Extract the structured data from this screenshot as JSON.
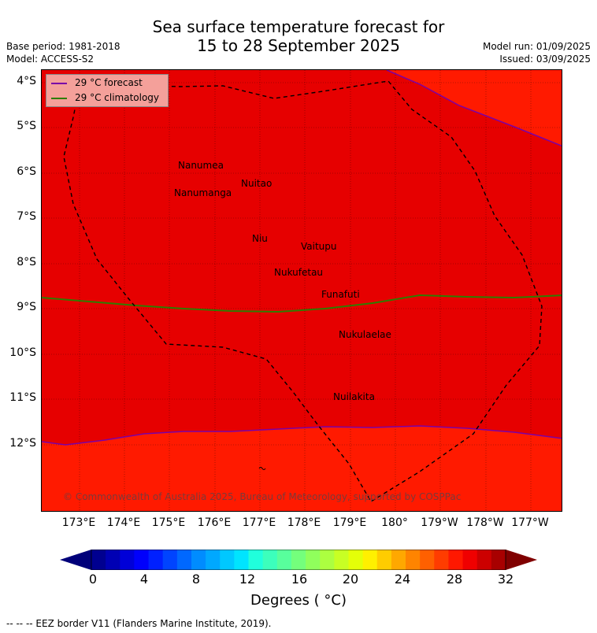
{
  "header": {
    "title_line1": "Sea surface temperature forecast for",
    "title_line2": "15 to 28 September 2025",
    "base_period": "Base period: 1981-2018",
    "model": "Model: ACCESS-S2",
    "model_run": "Model run: 01/09/2025",
    "issued": "Issued: 03/09/2025"
  },
  "map": {
    "lat_labels": [
      "4°S",
      "5°S",
      "6°S",
      "7°S",
      "8°S",
      "9°S",
      "10°S",
      "11°S",
      "12°S"
    ],
    "lon_labels": [
      "173°E",
      "174°E",
      "175°E",
      "176°E",
      "177°E",
      "178°E",
      "179°E",
      "180°",
      "179°W",
      "178°W",
      "177°W"
    ],
    "colors": {
      "warm_sst": "#e60000",
      "warmer_sst": "#ff1a00",
      "forecast_line": "#7a00a8",
      "climatology_line": "#2e7d00",
      "eez_border": "#000000",
      "grid": "#000000"
    },
    "places": [
      {
        "name": "Nanumea"
      },
      {
        "name": "Nuitao"
      },
      {
        "name": "Nanumanga"
      },
      {
        "name": "Niu"
      },
      {
        "name": "Vaitupu"
      },
      {
        "name": "Nukufetau"
      },
      {
        "name": "Funafuti"
      },
      {
        "name": "Nukulaelae"
      },
      {
        "name": "Nuilakita"
      }
    ],
    "legend": {
      "forecast": "29 °C  forecast",
      "climatology": "29 °C  climatology"
    },
    "copyright": "© Commonwealth of Australia 2025, Bureau of Meteorology, supported by COSPPac"
  },
  "colorbar": {
    "ticks": [
      "0",
      "4",
      "8",
      "12",
      "16",
      "20",
      "24",
      "28",
      "32"
    ],
    "label": "Degrees ( °C)",
    "colors": [
      "#000090",
      "#0000b4",
      "#0000d8",
      "#0000fc",
      "#0020ff",
      "#0044ff",
      "#0068ff",
      "#008cff",
      "#00a8ff",
      "#00c8ff",
      "#00e4ff",
      "#20ffdc",
      "#3cffbc",
      "#58ff9c",
      "#74ff7c",
      "#90ff5c",
      "#acff40",
      "#c8ff24",
      "#e4ff08",
      "#fff000",
      "#ffcc00",
      "#ffa800",
      "#ff8400",
      "#ff6000",
      "#ff3c00",
      "#ff1800",
      "#f00000",
      "#cc0000",
      "#a80000"
    ],
    "under_color": "#00007a",
    "over_color": "#800000"
  },
  "footnote": "--  --  -- EEZ border V11 (Flanders Marine Institute, 2019)."
}
